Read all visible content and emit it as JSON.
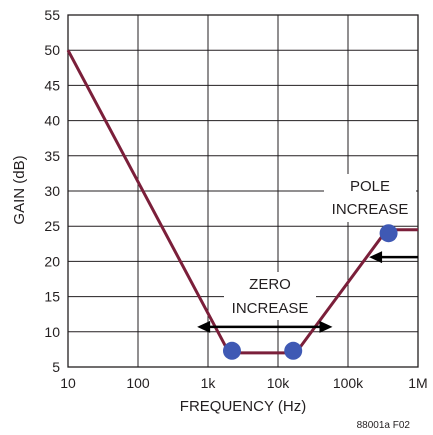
{
  "chart_data": {
    "type": "line",
    "title": "",
    "xlabel": "FREQUENCY (Hz)",
    "ylabel": "GAIN (dB)",
    "x_scale": "log",
    "xlim": [
      10,
      1000000
    ],
    "ylim": [
      5,
      55
    ],
    "x_ticks": [
      10,
      100,
      1000,
      10000,
      100000,
      1000000
    ],
    "x_tick_labels": [
      "10",
      "100",
      "1k",
      "10k",
      "100k",
      "1M"
    ],
    "y_ticks": [
      5,
      10,
      15,
      20,
      25,
      30,
      35,
      40,
      45,
      50,
      55
    ],
    "y_tick_labels": [
      "5",
      "10",
      "15",
      "20",
      "25",
      "30",
      "35",
      "40",
      "45",
      "50",
      "55"
    ],
    "grid": true,
    "series": [
      {
        "color": "#7b1f3a",
        "x": [
          10,
          2000,
          18000,
          360000,
          1000000
        ],
        "y": [
          50,
          7,
          7,
          24.5,
          24.5
        ]
      }
    ],
    "markers": [
      {
        "x": 2200,
        "y": 7.3
      },
      {
        "x": 16500,
        "y": 7.3
      },
      {
        "x": 380000,
        "y": 24
      }
    ],
    "marker_color": "#3f59b4",
    "annotations": [
      {
        "lines": [
          "ZERO",
          "INCREASE"
        ],
        "arrow": "both-horizontal",
        "from_x": 700,
        "to_x": 60000,
        "at_y": 10.7
      },
      {
        "lines": [
          "POLE",
          "INCREASE"
        ],
        "arrow": "left",
        "from_x": 1000000,
        "to_x": 200000,
        "at_y": 20.6
      }
    ],
    "note": "88001a F02"
  }
}
